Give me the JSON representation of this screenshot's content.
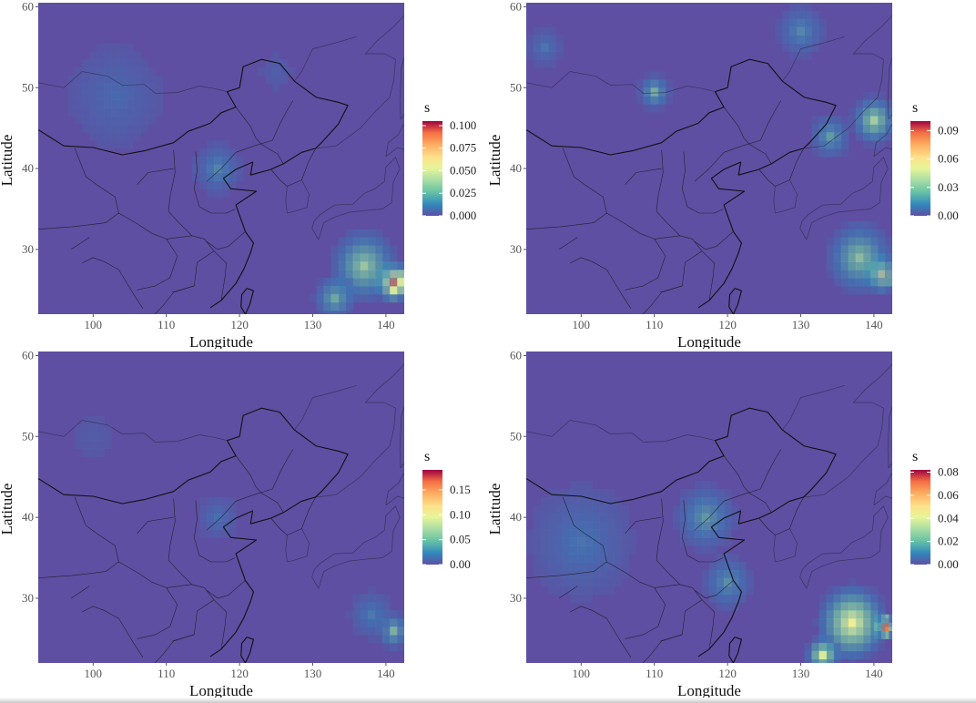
{
  "chart_data": [
    {
      "type": "heatmap",
      "position": "top-left",
      "xlabel": "Longitude",
      "ylabel": "Latitude",
      "x_ticks": [
        100,
        110,
        120,
        130,
        140
      ],
      "y_ticks": [
        30,
        40,
        50,
        60
      ],
      "xlim": [
        92.5,
        142.5
      ],
      "ylim": [
        22,
        60.5
      ],
      "legend": {
        "title": "s",
        "min": 0,
        "max": 0.105,
        "labels": [
          "0.100",
          "0.075",
          "0.050",
          "0.025",
          "0.000"
        ],
        "label_values": [
          0.1,
          0.075,
          0.05,
          0.025,
          0
        ],
        "placement": "right"
      },
      "hotspots": [
        {
          "lon": 141,
          "lat": 26,
          "value": 0.09,
          "r": 3
        },
        {
          "lon": 137,
          "lat": 28,
          "value": 0.04,
          "r": 6
        },
        {
          "lon": 133,
          "lat": 24,
          "value": 0.03,
          "r": 4
        },
        {
          "lon": 117,
          "lat": 40,
          "value": 0.02,
          "r": 5
        },
        {
          "lon": 103,
          "lat": 49,
          "value": 0.012,
          "r": 12
        },
        {
          "lon": 125,
          "lat": 52,
          "value": 0.008,
          "r": 6
        }
      ]
    },
    {
      "type": "heatmap",
      "position": "top-right",
      "xlabel": "Longitude",
      "ylabel": "Latitude",
      "x_ticks": [
        100,
        110,
        120,
        130,
        140
      ],
      "y_ticks": [
        30,
        40,
        50,
        60
      ],
      "xlim": [
        92.5,
        142.5
      ],
      "ylim": [
        22,
        60.5
      ],
      "legend": {
        "title": "s",
        "min": 0,
        "max": 0.1,
        "labels": [
          "0.09",
          "0.06",
          "0.03",
          "0.00"
        ],
        "label_values": [
          0.09,
          0.06,
          0.03,
          0
        ],
        "placement": "right"
      },
      "hotspots": [
        {
          "lon": 141,
          "lat": 27,
          "value": 0.06,
          "r": 3
        },
        {
          "lon": 138,
          "lat": 29,
          "value": 0.035,
          "r": 6
        },
        {
          "lon": 140,
          "lat": 46,
          "value": 0.04,
          "r": 4
        },
        {
          "lon": 134,
          "lat": 44,
          "value": 0.025,
          "r": 4
        },
        {
          "lon": 110,
          "lat": 49.5,
          "value": 0.03,
          "r": 3
        },
        {
          "lon": 130,
          "lat": 57,
          "value": 0.02,
          "r": 5
        },
        {
          "lon": 95,
          "lat": 55,
          "value": 0.015,
          "r": 4
        }
      ]
    },
    {
      "type": "heatmap",
      "position": "bottom-left",
      "xlabel": "Longitude",
      "ylabel": "Latitude",
      "x_ticks": [
        100,
        110,
        120,
        130,
        140
      ],
      "y_ticks": [
        30,
        40,
        50,
        60
      ],
      "xlim": [
        92.5,
        142.5
      ],
      "ylim": [
        22,
        60.5
      ],
      "legend": {
        "title": "s",
        "min": 0,
        "max": 0.19,
        "labels": [
          "0.15",
          "0.10",
          "0.05",
          "0.00"
        ],
        "label_values": [
          0.15,
          0.1,
          0.05,
          0
        ],
        "placement": "right"
      },
      "hotspots": [
        {
          "lon": 141,
          "lat": 26,
          "value": 0.06,
          "r": 3
        },
        {
          "lon": 138,
          "lat": 28,
          "value": 0.03,
          "r": 5
        },
        {
          "lon": 117,
          "lat": 40,
          "value": 0.025,
          "r": 5
        },
        {
          "lon": 100,
          "lat": 50,
          "value": 0.012,
          "r": 10
        }
      ]
    },
    {
      "type": "heatmap",
      "position": "bottom-right",
      "xlabel": "Longitude",
      "ylabel": "Latitude",
      "x_ticks": [
        100,
        110,
        120,
        130,
        140
      ],
      "y_ticks": [
        30,
        40,
        50,
        60
      ],
      "xlim": [
        92.5,
        142.5
      ],
      "ylim": [
        22,
        60.5
      ],
      "legend": {
        "title": "s",
        "min": 0,
        "max": 0.082,
        "labels": [
          "0.08",
          "0.06",
          "0.04",
          "0.02",
          "0.00"
        ],
        "label_values": [
          0.08,
          0.06,
          0.04,
          0.02,
          0
        ],
        "placement": "right"
      },
      "hotspots": [
        {
          "lon": 141.5,
          "lat": 26.5,
          "value": 0.07,
          "r": 2
        },
        {
          "lon": 137,
          "lat": 27,
          "value": 0.045,
          "r": 6
        },
        {
          "lon": 133,
          "lat": 23,
          "value": 0.04,
          "r": 3
        },
        {
          "lon": 117,
          "lat": 40,
          "value": 0.02,
          "r": 6
        },
        {
          "lon": 120,
          "lat": 32,
          "value": 0.018,
          "r": 5
        },
        {
          "lon": 100,
          "lat": 37,
          "value": 0.012,
          "r": 12
        }
      ]
    }
  ]
}
